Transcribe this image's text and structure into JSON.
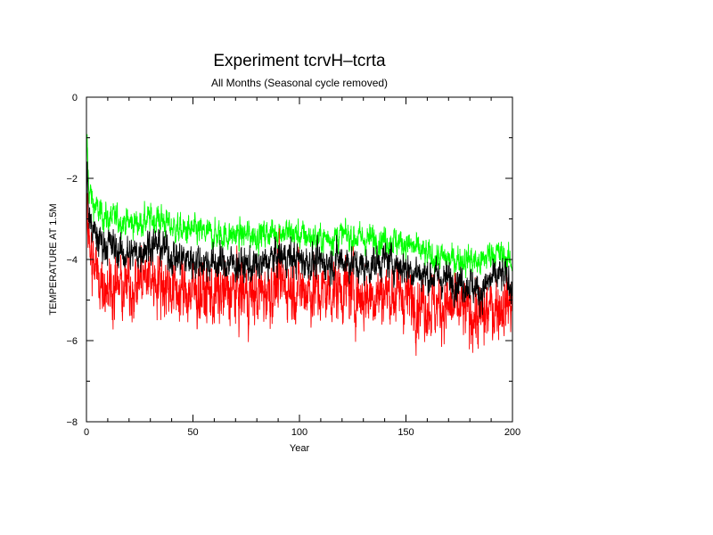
{
  "chart_data": {
    "type": "line",
    "title": "Experiment tcrvH–tcrta",
    "subtitle": "All Months (Seasonal cycle removed)",
    "xlabel": "Year",
    "ylabel": "TEMPERATURE AT 1.5M",
    "xlim": [
      0,
      200
    ],
    "ylim": [
      -8,
      0
    ],
    "x_ticks": [
      "0",
      "50",
      "100",
      "150",
      "200"
    ],
    "y_ticks": [
      "0",
      "−2",
      "−4",
      "−6",
      "−8"
    ],
    "grid": false,
    "legend": "none",
    "series": [
      {
        "color": "#00ff00",
        "x": [
          0,
          0.3,
          1,
          3,
          5,
          8,
          10,
          15,
          20,
          25,
          30,
          35,
          40,
          45,
          50,
          60,
          70,
          80,
          90,
          100,
          110,
          120,
          130,
          140,
          150,
          160,
          170,
          180,
          185,
          190,
          195,
          200
        ],
        "values": [
          -2.0,
          -1.1,
          -2.2,
          -2.6,
          -2.8,
          -2.9,
          -3.0,
          -3.0,
          -3.1,
          -3.1,
          -3.0,
          -3.0,
          -3.2,
          -3.3,
          -3.3,
          -3.4,
          -3.4,
          -3.4,
          -3.3,
          -3.4,
          -3.5,
          -3.4,
          -3.5,
          -3.5,
          -3.6,
          -3.9,
          -4.0,
          -4.0,
          -4.1,
          -3.8,
          -3.9,
          -4.1
        ],
        "noise": 0.18
      },
      {
        "color": "#000000",
        "x": [
          0,
          0.3,
          1,
          3,
          5,
          8,
          10,
          15,
          20,
          25,
          30,
          35,
          40,
          45,
          50,
          60,
          70,
          80,
          90,
          100,
          110,
          120,
          130,
          140,
          150,
          160,
          170,
          180,
          185,
          190,
          195,
          200
        ],
        "values": [
          -2.8,
          -1.7,
          -2.9,
          -3.3,
          -3.5,
          -3.6,
          -3.6,
          -3.8,
          -3.9,
          -3.8,
          -3.6,
          -3.7,
          -3.9,
          -4.0,
          -4.0,
          -4.1,
          -4.1,
          -4.2,
          -3.9,
          -4.0,
          -4.1,
          -4.0,
          -4.2,
          -4.0,
          -4.2,
          -4.4,
          -4.5,
          -4.6,
          -4.8,
          -4.5,
          -4.4,
          -4.6
        ],
        "noise": 0.22
      },
      {
        "color": "#ff0000",
        "x": [
          0,
          0.3,
          1,
          3,
          5,
          8,
          10,
          15,
          20,
          25,
          30,
          35,
          40,
          45,
          50,
          60,
          70,
          80,
          90,
          100,
          110,
          120,
          130,
          140,
          150,
          160,
          170,
          180,
          185,
          190,
          195,
          200
        ],
        "values": [
          -3.2,
          -2.3,
          -3.6,
          -4.2,
          -4.4,
          -4.5,
          -4.6,
          -4.7,
          -4.7,
          -4.5,
          -4.4,
          -4.5,
          -4.7,
          -4.8,
          -4.8,
          -4.9,
          -4.8,
          -4.9,
          -4.6,
          -4.7,
          -4.8,
          -4.7,
          -4.9,
          -4.8,
          -4.9,
          -5.1,
          -5.2,
          -5.3,
          -5.5,
          -5.2,
          -5.1,
          -5.0
        ],
        "noise": 0.4
      }
    ]
  }
}
